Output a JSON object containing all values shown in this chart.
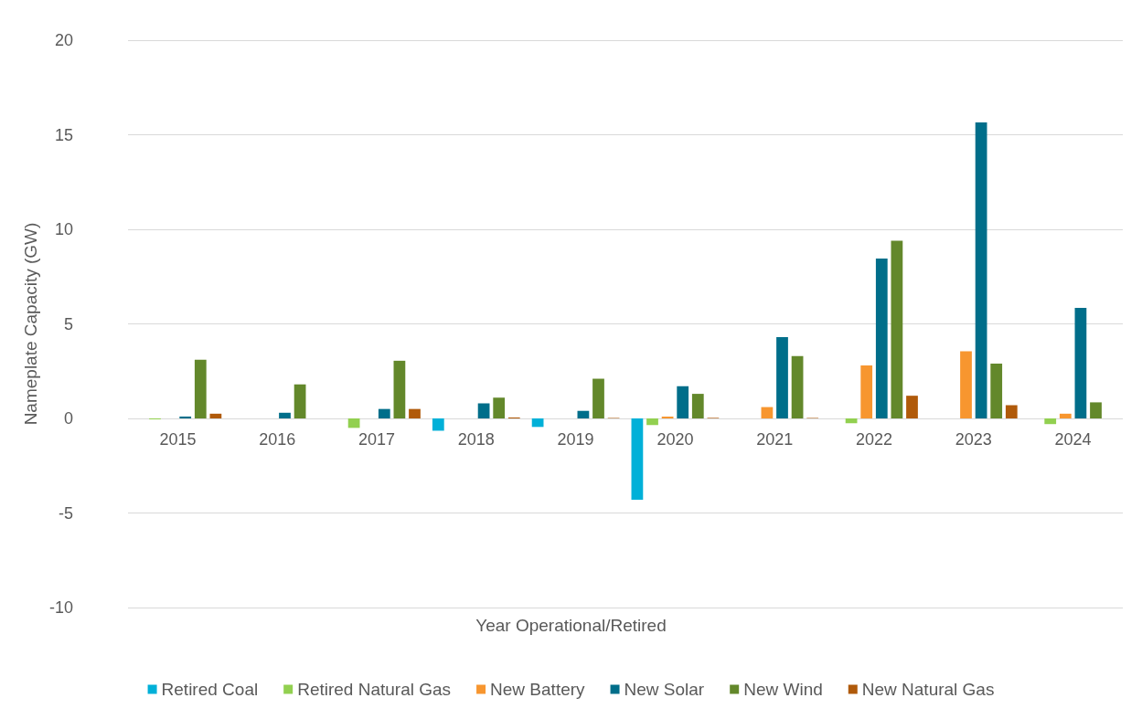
{
  "chart_data": {
    "type": "bar",
    "xlabel": "Year Operational/Retired",
    "ylabel": "Nameplate Capacity (GW)",
    "categories": [
      "2015",
      "2016",
      "2017",
      "2018",
      "2019",
      "2020",
      "2021",
      "2022",
      "2023",
      "2024"
    ],
    "series": [
      {
        "name": "Retired Coal",
        "color": "#00b0d8",
        "values": [
          0,
          0,
          0,
          -0.65,
          -0.45,
          -4.3,
          0,
          0,
          0,
          0
        ]
      },
      {
        "name": "Retired Natural Gas",
        "color": "#92d050",
        "values": [
          -0.05,
          0,
          -0.5,
          0,
          0,
          -0.35,
          0,
          -0.25,
          0,
          -0.3
        ]
      },
      {
        "name": "New Battery",
        "color": "#f7962f",
        "values": [
          0,
          0,
          0,
          0,
          0,
          0.1,
          0.6,
          2.8,
          3.55,
          0.25
        ]
      },
      {
        "name": "New Solar",
        "color": "#006e8a",
        "values": [
          0.1,
          0.3,
          0.5,
          0.8,
          0.4,
          1.7,
          4.3,
          8.45,
          15.65,
          5.85
        ]
      },
      {
        "name": "New Wind",
        "color": "#63882b",
        "values": [
          3.1,
          1.8,
          3.05,
          1.1,
          2.1,
          1.3,
          3.3,
          9.4,
          2.9,
          0.85
        ]
      },
      {
        "name": "New Natural Gas",
        "color": "#b05a0a",
        "values": [
          0.25,
          0,
          0.5,
          0.05,
          0.03,
          0.03,
          0.03,
          1.2,
          0.7,
          0
        ]
      }
    ],
    "ylim": [
      -10,
      20
    ],
    "yticks": [
      -10,
      -5,
      0,
      5,
      10,
      15,
      20
    ],
    "grid": "y",
    "legend": "bottom"
  }
}
